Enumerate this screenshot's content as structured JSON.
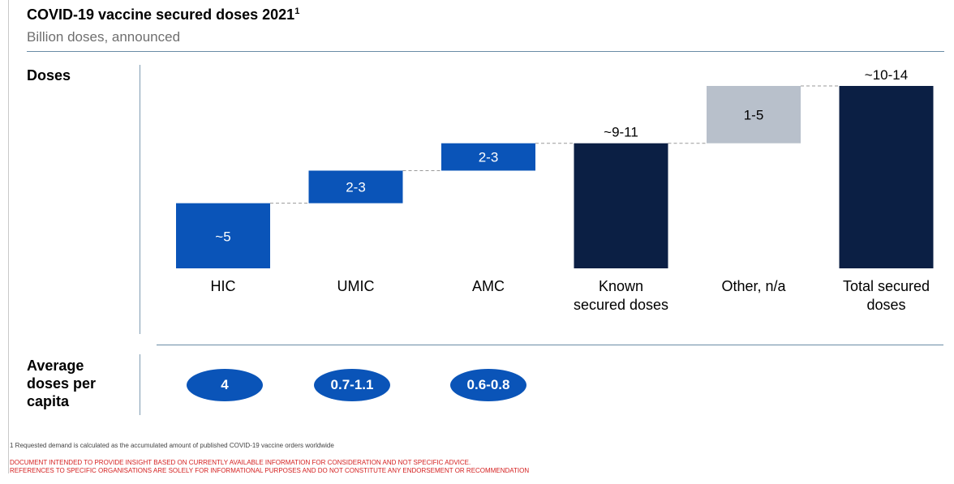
{
  "header": {
    "title": "COVID-19 vaccine secured doses 2021",
    "title_sup": "1",
    "subtitle": "Billion doses, announced"
  },
  "sections": {
    "doses_label": "Doses",
    "per_capita_label": "Average doses per capita"
  },
  "chart_data": {
    "type": "bar",
    "subtype": "waterfall",
    "title": "COVID-19 vaccine secured doses 2021",
    "ylabel": "Billion doses, announced",
    "ylim": [
      0,
      14
    ],
    "categories": [
      "HIC",
      "UMIC",
      "AMC",
      "Known secured doses",
      "Other, n/a",
      "Total secured doses"
    ],
    "bars": [
      {
        "category": "HIC",
        "label": "~5",
        "start": 0,
        "end": 5,
        "kind": "increment"
      },
      {
        "category": "UMIC",
        "label": "2-3",
        "start": 5,
        "end": 7.5,
        "kind": "increment"
      },
      {
        "category": "AMC",
        "label": "2-3",
        "start": 7.5,
        "end": 9.6,
        "kind": "increment"
      },
      {
        "category": "Known secured doses",
        "label": "~9-11",
        "start": 0,
        "end": 9.6,
        "kind": "total"
      },
      {
        "category": "Other, n/a",
        "label": "1-5",
        "start": 9.6,
        "end": 14,
        "kind": "other"
      },
      {
        "category": "Total secured doses",
        "label": "~10-14",
        "start": 0,
        "end": 14,
        "kind": "total"
      }
    ],
    "colors": {
      "increment": "#0a54b8",
      "total": "#0b1f44",
      "other": "#b8c0cb",
      "connector": "#9a9a9a"
    },
    "connectors": "dashed"
  },
  "per_capita": [
    {
      "category": "HIC",
      "value": "4"
    },
    {
      "category": "UMIC",
      "value": "0.7-1.1"
    },
    {
      "category": "AMC",
      "value": "0.6-0.8"
    }
  ],
  "footer": {
    "footnote": "1 Requested demand is calculated as the accumulated amount of published COVID-19 vaccine orders worldwide",
    "disclaimer_line1": "DOCUMENT INTENDED TO PROVIDE INSIGHT BASED ON CURRENTLY AVAILABLE INFORMATION FOR CONSIDERATION AND NOT SPECIFIC ADVICE.",
    "disclaimer_line2": "REFERENCES TO SPECIFIC ORGANISATIONS ARE SOLELY FOR INFORMATIONAL PURPOSES AND DO NOT CONSTITUTE ANY ENDORSEMENT OR RECOMMENDATION"
  }
}
